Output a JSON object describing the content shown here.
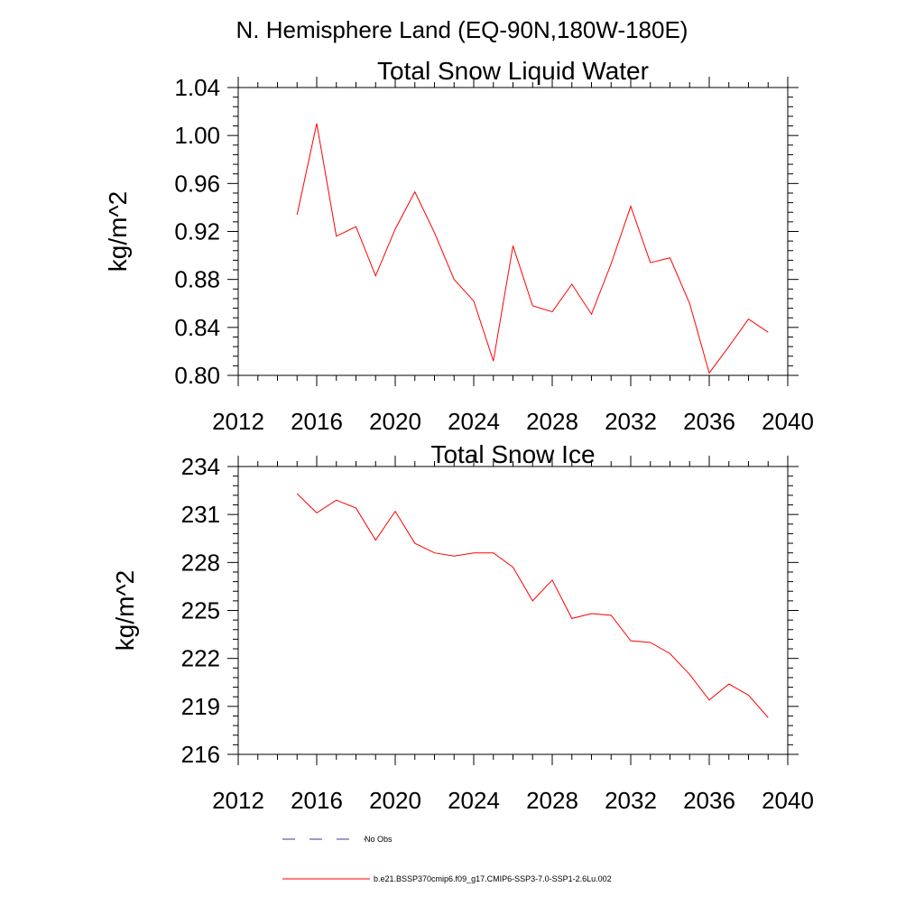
{
  "suptitle": "N. Hemisphere Land (EQ-90N,180W-180E)",
  "legend": [
    {
      "label": "No Obs",
      "style": "dashed",
      "color": "#3a3aa0"
    },
    {
      "label": "b.e21.BSSP370cmip6.f09_g17.CMIP6-SSP3-7.0-SSP1-2.6Lu.002",
      "style": "solid",
      "color": "#ff0000"
    }
  ],
  "chart_data": [
    {
      "type": "line",
      "title": "Total Snow Liquid Water",
      "xlabel": "",
      "ylabel": "kg/m^2",
      "xlim": [
        2012,
        2040
      ],
      "ylim": [
        0.8,
        1.04
      ],
      "xticks": [
        "2012",
        "2016",
        "2020",
        "2024",
        "2028",
        "2032",
        "2036",
        "2040"
      ],
      "yticks": [
        "0.80",
        "0.84",
        "0.88",
        "0.92",
        "0.96",
        "1.00",
        "1.04"
      ],
      "grid": false,
      "x": [
        2015,
        2016,
        2017,
        2018,
        2019,
        2020,
        2021,
        2022,
        2023,
        2024,
        2025,
        2026,
        2027,
        2028,
        2029,
        2030,
        2031,
        2032,
        2033,
        2034,
        2035,
        2036,
        2037,
        2038,
        2039
      ],
      "series": [
        {
          "color": "#ff0000",
          "values": [
            0.934,
            1.01,
            0.916,
            0.924,
            0.883,
            0.922,
            0.953,
            0.919,
            0.88,
            0.862,
            0.812,
            0.908,
            0.858,
            0.853,
            0.876,
            0.851,
            0.893,
            0.941,
            0.894,
            0.898,
            0.86,
            0.802,
            0.824,
            0.847,
            0.836
          ]
        }
      ]
    },
    {
      "type": "line",
      "title": "Total Snow Ice",
      "xlabel": "",
      "ylabel": "kg/m^2",
      "xlim": [
        2012,
        2040
      ],
      "ylim": [
        216,
        234
      ],
      "xticks": [
        "2012",
        "2016",
        "2020",
        "2024",
        "2028",
        "2032",
        "2036",
        "2040"
      ],
      "yticks": [
        "216",
        "219",
        "222",
        "225",
        "228",
        "231",
        "234"
      ],
      "grid": false,
      "x": [
        2015,
        2016,
        2017,
        2018,
        2019,
        2020,
        2021,
        2022,
        2023,
        2024,
        2025,
        2026,
        2027,
        2028,
        2029,
        2030,
        2031,
        2032,
        2033,
        2034,
        2035,
        2036,
        2037,
        2038,
        2039
      ],
      "series": [
        {
          "color": "#ff0000",
          "values": [
            232.3,
            231.1,
            231.9,
            231.4,
            229.4,
            231.2,
            229.2,
            228.6,
            228.4,
            228.6,
            228.6,
            227.7,
            225.6,
            226.9,
            224.5,
            224.8,
            224.7,
            223.1,
            223.0,
            222.3,
            221.0,
            219.4,
            220.4,
            219.7,
            218.3
          ]
        }
      ]
    }
  ]
}
